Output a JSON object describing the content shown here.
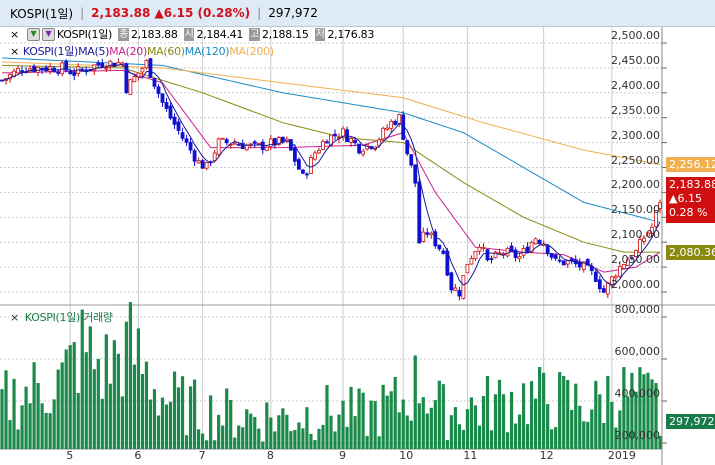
{
  "header": {
    "symbol": "KOSPI(1일)",
    "price_change": "2,183.88 ▲6.15 (0.28%)",
    "volume": "297,972"
  },
  "legend": {
    "close_btn": "×",
    "symbol": "KOSPI(1일)",
    "close_label": "종",
    "close": "2,183.88",
    "open_label": "시",
    "open": "2,184.41",
    "high_label": "고",
    "high": "2,188.15",
    "low_label": "저",
    "low": "2,176.83"
  },
  "ma_legend": {
    "close_btn": "×",
    "symbol": "KOSPI(1일)",
    "items": [
      {
        "label": "MA(5)",
        "color": "#1a1a9a"
      },
      {
        "label": "MA(20)",
        "color": "#d0208a"
      },
      {
        "label": "MA(60)",
        "color": "#8a8a10"
      },
      {
        "label": "MA(120)",
        "color": "#1a8ac8"
      },
      {
        "label": "MA(200)",
        "color": "#f0b050"
      }
    ]
  },
  "volume_legend": {
    "close_btn": "×",
    "label": "KOSPI(1일) 거래량"
  },
  "tags": {
    "ma200": "2,256.12",
    "price": "2,183.88",
    "change": "▲6.15",
    "pct": "0.28 %",
    "ma60": "2,080.36",
    "volume": "297,972"
  },
  "price_axis": [
    "2,500.00",
    "2,450.00",
    "2,400.00",
    "2,350.00",
    "2,300.00",
    "2,250.00",
    "2,200.00",
    "2,150.00",
    "2,100.00",
    "2,050.00",
    "2,000.00"
  ],
  "volume_axis": [
    "800,000",
    "600,000",
    "400,000",
    "200,000"
  ],
  "months": [
    {
      "label": "5",
      "day": 17
    },
    {
      "label": "6",
      "day": 34
    },
    {
      "label": "7",
      "day": 50
    },
    {
      "label": "8",
      "day": 67
    },
    {
      "label": "9",
      "day": 85
    },
    {
      "label": "10",
      "day": 100
    },
    {
      "label": "11",
      "day": 116
    },
    {
      "label": "12",
      "day": 135
    },
    {
      "label": "2019",
      "day": 152
    }
  ],
  "chart_data": {
    "type": "candlestick",
    "days": 165,
    "ylim": [
      1980,
      2530
    ],
    "close_anchors": [
      [
        0,
        2425
      ],
      [
        5,
        2450
      ],
      [
        15,
        2450
      ],
      [
        18,
        2440
      ],
      [
        25,
        2460
      ],
      [
        30,
        2460
      ],
      [
        31,
        2410
      ],
      [
        36,
        2460
      ],
      [
        40,
        2380
      ],
      [
        42,
        2350
      ],
      [
        45,
        2310
      ],
      [
        49,
        2260
      ],
      [
        51,
        2250
      ],
      [
        54,
        2300
      ],
      [
        58,
        2300
      ],
      [
        63,
        2290
      ],
      [
        68,
        2300
      ],
      [
        71,
        2300
      ],
      [
        75,
        2230
      ],
      [
        78,
        2280
      ],
      [
        81,
        2310
      ],
      [
        85,
        2320
      ],
      [
        89,
        2290
      ],
      [
        93,
        2300
      ],
      [
        97,
        2340
      ],
      [
        99,
        2350
      ],
      [
        101,
        2280
      ],
      [
        103,
        2220
      ],
      [
        104,
        2100
      ],
      [
        106,
        2120
      ],
      [
        110,
        2080
      ],
      [
        112,
        2010
      ],
      [
        114,
        2000
      ],
      [
        116,
        2060
      ],
      [
        119,
        2100
      ],
      [
        121,
        2060
      ],
      [
        125,
        2080
      ],
      [
        129,
        2070
      ],
      [
        133,
        2110
      ],
      [
        135,
        2100
      ],
      [
        138,
        2060
      ],
      [
        141,
        2060
      ],
      [
        145,
        2050
      ],
      [
        148,
        2030
      ],
      [
        150,
        2000
      ],
      [
        153,
        2040
      ],
      [
        155,
        2060
      ],
      [
        158,
        2080
      ],
      [
        160,
        2110
      ],
      [
        162,
        2130
      ],
      [
        164,
        2184
      ]
    ],
    "ma_anchors": {
      "MA(20)": [
        [
          0,
          2440
        ],
        [
          30,
          2445
        ],
        [
          40,
          2420
        ],
        [
          52,
          2290
        ],
        [
          70,
          2290
        ],
        [
          90,
          2295
        ],
        [
          100,
          2320
        ],
        [
          108,
          2200
        ],
        [
          118,
          2090
        ],
        [
          130,
          2080
        ],
        [
          140,
          2075
        ],
        [
          150,
          2040
        ],
        [
          158,
          2050
        ],
        [
          164,
          2080
        ]
      ],
      "MA(60)": [
        [
          0,
          2455
        ],
        [
          30,
          2450
        ],
        [
          50,
          2400
        ],
        [
          70,
          2340
        ],
        [
          85,
          2310
        ],
        [
          100,
          2300
        ],
        [
          115,
          2220
        ],
        [
          130,
          2150
        ],
        [
          145,
          2100
        ],
        [
          155,
          2080
        ],
        [
          164,
          2080
        ]
      ],
      "MA(120)": [
        [
          0,
          2470
        ],
        [
          40,
          2455
        ],
        [
          70,
          2400
        ],
        [
          100,
          2360
        ],
        [
          115,
          2320
        ],
        [
          130,
          2250
        ],
        [
          145,
          2180
        ],
        [
          164,
          2140
        ]
      ],
      "MA(200)": [
        [
          0,
          2462
        ],
        [
          40,
          2450
        ],
        [
          80,
          2410
        ],
        [
          100,
          2390
        ],
        [
          120,
          2340
        ],
        [
          145,
          2285
        ],
        [
          164,
          2256
        ]
      ]
    },
    "volume_ylim": [
      150000,
      850000
    ],
    "volume_anchors": [
      [
        0,
        400000
      ],
      [
        15,
        500000
      ],
      [
        20,
        650000
      ],
      [
        25,
        550000
      ],
      [
        32,
        650000
      ],
      [
        40,
        420000
      ],
      [
        50,
        350000
      ],
      [
        60,
        330000
      ],
      [
        70,
        320000
      ],
      [
        80,
        350000
      ],
      [
        90,
        330000
      ],
      [
        100,
        400000
      ],
      [
        104,
        500000
      ],
      [
        110,
        350000
      ],
      [
        120,
        380000
      ],
      [
        130,
        420000
      ],
      [
        140,
        400000
      ],
      [
        148,
        380000
      ],
      [
        152,
        450000
      ],
      [
        158,
        420000
      ],
      [
        163,
        400000
      ],
      [
        164,
        298000
      ]
    ]
  }
}
